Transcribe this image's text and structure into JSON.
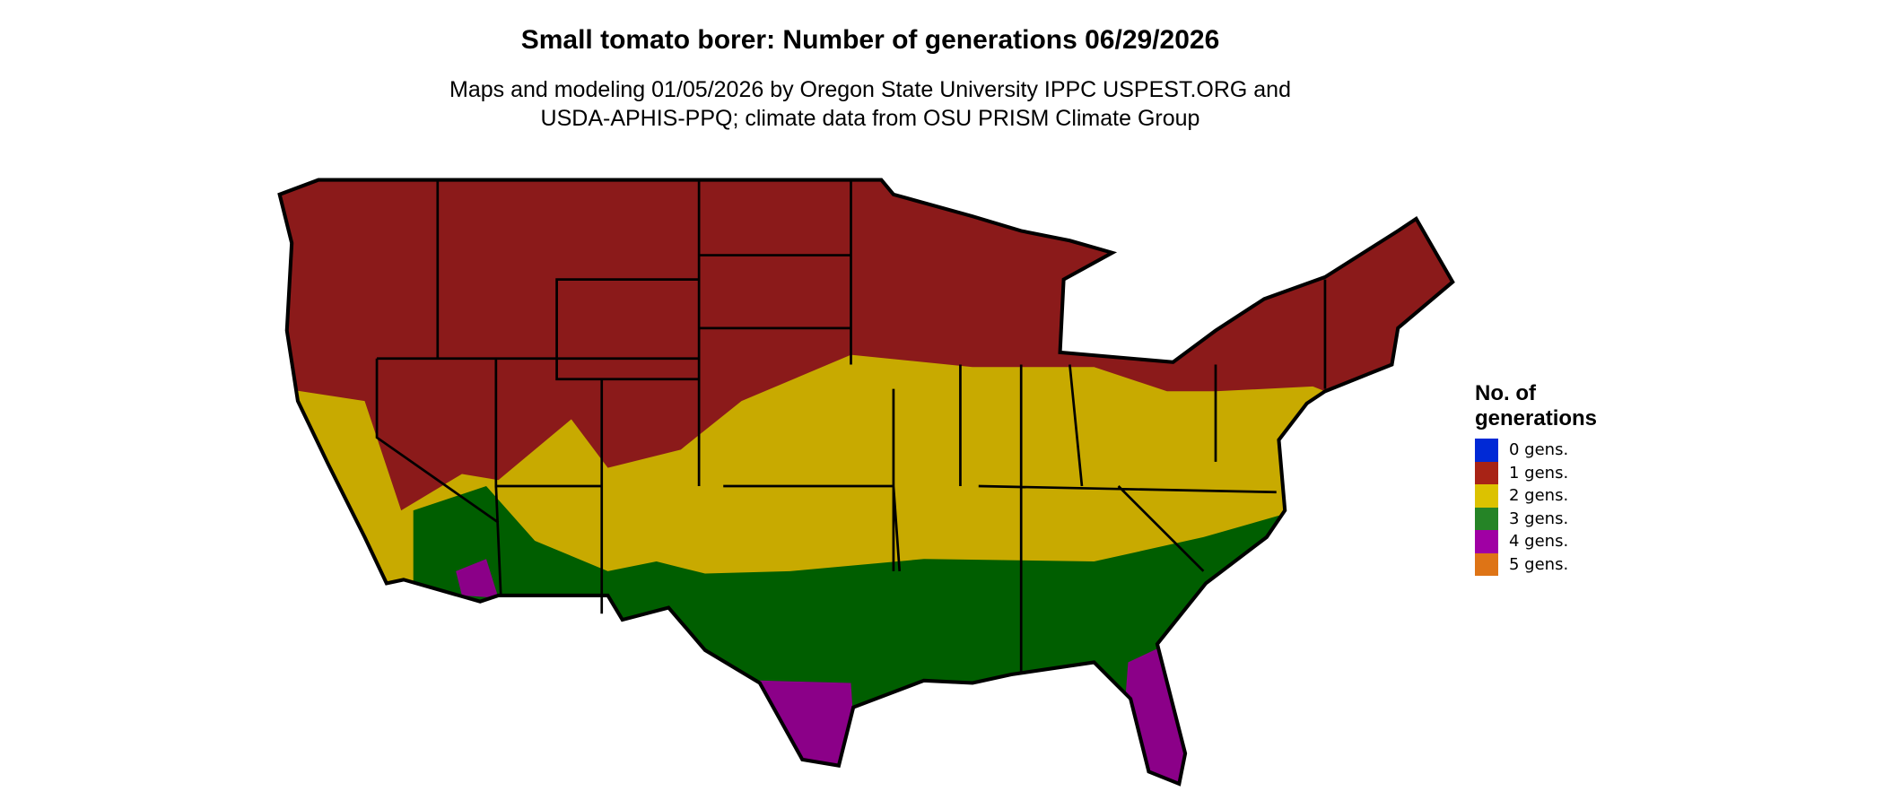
{
  "title": "Small tomato borer: Number of generations 06/29/2026",
  "subtitle_line1": "Maps and modeling 01/05/2026 by Oregon State University IPPC USPEST.ORG and",
  "subtitle_line2": "USDA-APHIS-PPQ; climate data from OSU PRISM Climate Group",
  "legend": {
    "title_line1": "No. of",
    "title_line2": "generations",
    "items": [
      {
        "label": "0 gens.",
        "color": "#0029d6"
      },
      {
        "label": "1 gens.",
        "color": "#a82316"
      },
      {
        "label": "2 gens.",
        "color": "#dcc200"
      },
      {
        "label": "3 gens.",
        "color": "#258426"
      },
      {
        "label": "4 gens.",
        "color": "#a000a4"
      },
      {
        "label": "5 gens.",
        "color": "#de7416"
      }
    ]
  },
  "map_colors": {
    "1_gen": "#8b1a1a",
    "2_gen": "#c8aa00",
    "3_gen": "#005e00",
    "4_gen": "#8b0088"
  }
}
